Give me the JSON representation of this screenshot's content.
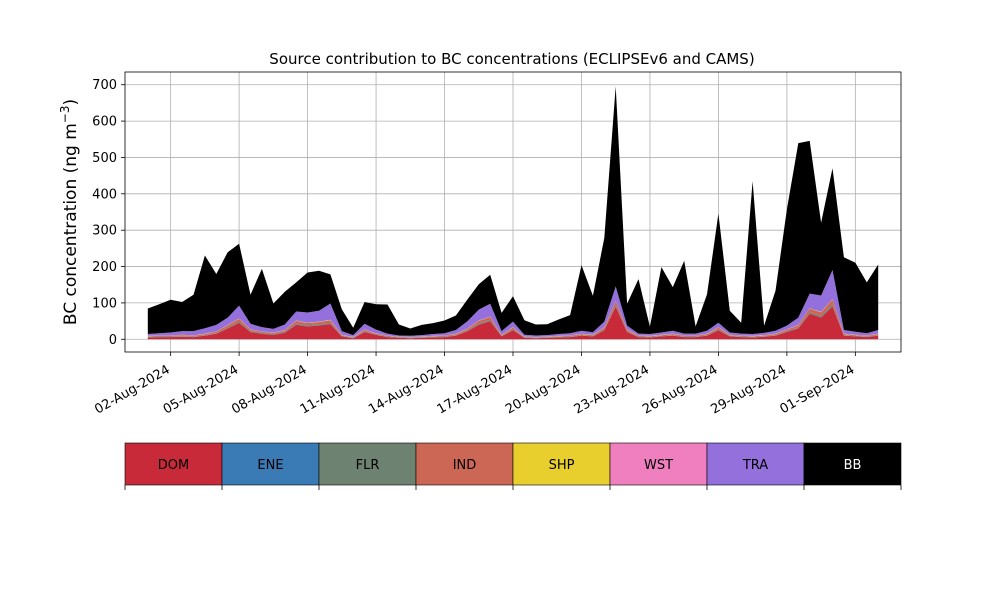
{
  "chart_data": {
    "type": "area",
    "stacked": true,
    "title": "Source contribution to BC concentrations (ECLIPSEv6 and CAMS)",
    "ylabel": "BC concentration",
    "yunit_prefix": "(ng m",
    "yunit_exponent": "−3",
    "yunit_suffix": ")",
    "xlim": [
      "2024-07-31",
      "2024-09-03"
    ],
    "ylim": [
      -35,
      735
    ],
    "yticks": [
      0,
      100,
      200,
      300,
      400,
      500,
      600,
      700
    ],
    "xticks": [
      "2024-08-02",
      "2024-08-05",
      "2024-08-08",
      "2024-08-11",
      "2024-08-14",
      "2024-08-17",
      "2024-08-20",
      "2024-08-23",
      "2024-08-26",
      "2024-08-29",
      "2024-09-01"
    ],
    "xtick_labels": [
      "02-Aug-2024",
      "05-Aug-2024",
      "08-Aug-2024",
      "11-Aug-2024",
      "14-Aug-2024",
      "17-Aug-2024",
      "20-Aug-2024",
      "23-Aug-2024",
      "26-Aug-2024",
      "29-Aug-2024",
      "01-Sep-2024"
    ],
    "grid": true,
    "legend_position": "below",
    "x": [
      "2024-08-01 00:00",
      "2024-08-01 12:00",
      "2024-08-02 00:00",
      "2024-08-02 12:00",
      "2024-08-03 00:00",
      "2024-08-03 12:00",
      "2024-08-04 00:00",
      "2024-08-04 12:00",
      "2024-08-05 00:00",
      "2024-08-05 12:00",
      "2024-08-06 00:00",
      "2024-08-06 12:00",
      "2024-08-07 00:00",
      "2024-08-07 12:00",
      "2024-08-08 00:00",
      "2024-08-08 12:00",
      "2024-08-09 00:00",
      "2024-08-09 12:00",
      "2024-08-10 00:00",
      "2024-08-10 12:00",
      "2024-08-11 00:00",
      "2024-08-11 12:00",
      "2024-08-12 00:00",
      "2024-08-12 12:00",
      "2024-08-13 00:00",
      "2024-08-13 12:00",
      "2024-08-14 00:00",
      "2024-08-14 12:00",
      "2024-08-15 00:00",
      "2024-08-15 12:00",
      "2024-08-16 00:00",
      "2024-08-16 12:00",
      "2024-08-17 00:00",
      "2024-08-17 12:00",
      "2024-08-18 00:00",
      "2024-08-18 12:00",
      "2024-08-19 00:00",
      "2024-08-19 12:00",
      "2024-08-20 00:00",
      "2024-08-20 12:00",
      "2024-08-21 00:00",
      "2024-08-21 12:00",
      "2024-08-22 00:00",
      "2024-08-22 12:00",
      "2024-08-23 00:00",
      "2024-08-23 12:00",
      "2024-08-24 00:00",
      "2024-08-24 12:00",
      "2024-08-25 00:00",
      "2024-08-25 12:00",
      "2024-08-26 00:00",
      "2024-08-26 12:00",
      "2024-08-27 00:00",
      "2024-08-27 12:00",
      "2024-08-28 00:00",
      "2024-08-28 12:00",
      "2024-08-29 00:00",
      "2024-08-29 12:00",
      "2024-08-30 00:00",
      "2024-08-30 12:00",
      "2024-08-31 00:00",
      "2024-08-31 12:00",
      "2024-09-01 00:00",
      "2024-09-01 12:00",
      "2024-09-02 00:00"
    ],
    "series": [
      {
        "name": "DOM",
        "color": "#c92a3a",
        "values": [
          5,
          6,
          6,
          7,
          6,
          10,
          15,
          30,
          45,
          20,
          15,
          12,
          18,
          40,
          35,
          38,
          42,
          8,
          3,
          20,
          12,
          6,
          4,
          3,
          4,
          5,
          6,
          10,
          22,
          40,
          50,
          8,
          25,
          4,
          3,
          4,
          5,
          6,
          10,
          8,
          25,
          90,
          20,
          6,
          5,
          8,
          10,
          6,
          6,
          10,
          25,
          8,
          6,
          5,
          7,
          10,
          20,
          30,
          70,
          60,
          90,
          10,
          8,
          6,
          10
        ]
      },
      {
        "name": "ENE",
        "color": "#3a7ab5",
        "values": [
          0.5,
          0.5,
          0.5,
          0.5,
          0.5,
          0.5,
          0.5,
          0.5,
          0.5,
          0.5,
          0.5,
          0.5,
          0.5,
          0.5,
          0.5,
          0.5,
          0.5,
          0.5,
          0.5,
          0.5,
          0.5,
          0.5,
          0.5,
          0.5,
          0.5,
          0.5,
          0.5,
          0.5,
          0.5,
          0.5,
          0.5,
          0.5,
          0.5,
          0.5,
          0.5,
          0.5,
          0.5,
          0.5,
          0.5,
          0.5,
          0.5,
          0.5,
          0.5,
          0.5,
          0.5,
          0.5,
          0.5,
          0.5,
          0.5,
          0.5,
          0.5,
          0.5,
          0.5,
          0.5,
          0.5,
          0.5,
          0.5,
          0.5,
          0.5,
          0.5,
          0.5,
          0.5,
          0.5,
          0.5,
          0.5
        ]
      },
      {
        "name": "FLR",
        "color": "#6e8272",
        "values": [
          1,
          1,
          1,
          1,
          1,
          1,
          1,
          2,
          3,
          2,
          2,
          2,
          2,
          3,
          3,
          3,
          3,
          1,
          1,
          2,
          1,
          1,
          1,
          1,
          1,
          1,
          1,
          1,
          2,
          3,
          3,
          1,
          2,
          1,
          1,
          1,
          1,
          1,
          1,
          1,
          2,
          4,
          2,
          1,
          1,
          1,
          1,
          1,
          1,
          1,
          2,
          1,
          1,
          1,
          1,
          1,
          2,
          2,
          4,
          4,
          5,
          1,
          1,
          1,
          1
        ]
      },
      {
        "name": "IND",
        "color": "#cc6655",
        "values": [
          2,
          2,
          2,
          3,
          2,
          3,
          4,
          6,
          8,
          4,
          3,
          3,
          4,
          7,
          6,
          6,
          7,
          2,
          1,
          4,
          2,
          2,
          1,
          1,
          1,
          2,
          2,
          3,
          4,
          7,
          8,
          2,
          5,
          1,
          1,
          1,
          2,
          2,
          3,
          2,
          5,
          10,
          4,
          2,
          2,
          2,
          3,
          2,
          2,
          3,
          5,
          2,
          2,
          2,
          2,
          3,
          4,
          6,
          10,
          10,
          14,
          3,
          2,
          2,
          3
        ]
      },
      {
        "name": "SHP",
        "color": "#e8cf2e",
        "values": [
          0.5,
          0.5,
          0.5,
          0.5,
          0.5,
          0.5,
          0.5,
          0.5,
          0.5,
          0.5,
          0.5,
          0.5,
          0.5,
          0.5,
          0.5,
          0.5,
          0.5,
          0.5,
          0.5,
          0.5,
          0.5,
          0.5,
          0.5,
          0.5,
          0.5,
          0.5,
          0.5,
          0.5,
          0.5,
          0.5,
          0.5,
          0.5,
          0.5,
          0.5,
          0.5,
          0.5,
          0.5,
          0.5,
          0.5,
          0.5,
          0.5,
          0.5,
          0.5,
          0.5,
          0.5,
          0.5,
          0.5,
          0.5,
          0.5,
          0.5,
          0.5,
          0.5,
          0.5,
          0.5,
          0.5,
          0.5,
          0.5,
          0.5,
          0.5,
          0.5,
          0.5,
          0.5,
          0.5,
          0.5,
          0.5
        ]
      },
      {
        "name": "WST",
        "color": "#f07fbf",
        "values": [
          0.5,
          0.5,
          0.5,
          0.5,
          0.5,
          0.5,
          0.5,
          0.5,
          0.5,
          0.5,
          0.5,
          0.5,
          0.5,
          0.5,
          0.5,
          0.5,
          0.5,
          0.5,
          0.5,
          0.5,
          0.5,
          0.5,
          0.5,
          0.5,
          0.5,
          0.5,
          0.5,
          0.5,
          0.5,
          0.5,
          0.5,
          0.5,
          0.5,
          0.5,
          0.5,
          0.5,
          0.5,
          0.5,
          0.5,
          0.5,
          0.5,
          0.5,
          0.5,
          0.5,
          0.5,
          0.5,
          0.5,
          0.5,
          0.5,
          0.5,
          0.5,
          0.5,
          0.5,
          0.5,
          0.5,
          0.5,
          0.5,
          0.5,
          0.5,
          0.5,
          0.5,
          0.5,
          0.5,
          0.5,
          0.5
        ]
      },
      {
        "name": "TRA",
        "color": "#9370db",
        "values": [
          5,
          6,
          8,
          10,
          12,
          15,
          18,
          20,
          35,
          15,
          12,
          10,
          15,
          25,
          28,
          30,
          45,
          10,
          5,
          15,
          10,
          5,
          3,
          3,
          4,
          5,
          6,
          10,
          20,
          30,
          35,
          10,
          15,
          5,
          4,
          4,
          5,
          6,
          8,
          7,
          15,
          40,
          10,
          5,
          5,
          6,
          8,
          5,
          5,
          8,
          12,
          6,
          5,
          5,
          6,
          8,
          10,
          20,
          40,
          45,
          80,
          10,
          8,
          6,
          10
        ]
      },
      {
        "name": "BB",
        "color": "#000000",
        "values": [
          70,
          80,
          90,
          80,
          100,
          200,
          140,
          180,
          170,
          80,
          160,
          70,
          90,
          80,
          110,
          110,
          80,
          60,
          20,
          60,
          70,
          80,
          30,
          20,
          28,
          30,
          35,
          40,
          60,
          70,
          80,
          50,
          70,
          40,
          30,
          30,
          40,
          50,
          180,
          100,
          230,
          550,
          60,
          150,
          20,
          180,
          120,
          200,
          20,
          100,
          300,
          60,
          30,
          420,
          20,
          110,
          320,
          480,
          420,
          200,
          280,
          200,
          190,
          140,
          180
        ]
      }
    ]
  }
}
